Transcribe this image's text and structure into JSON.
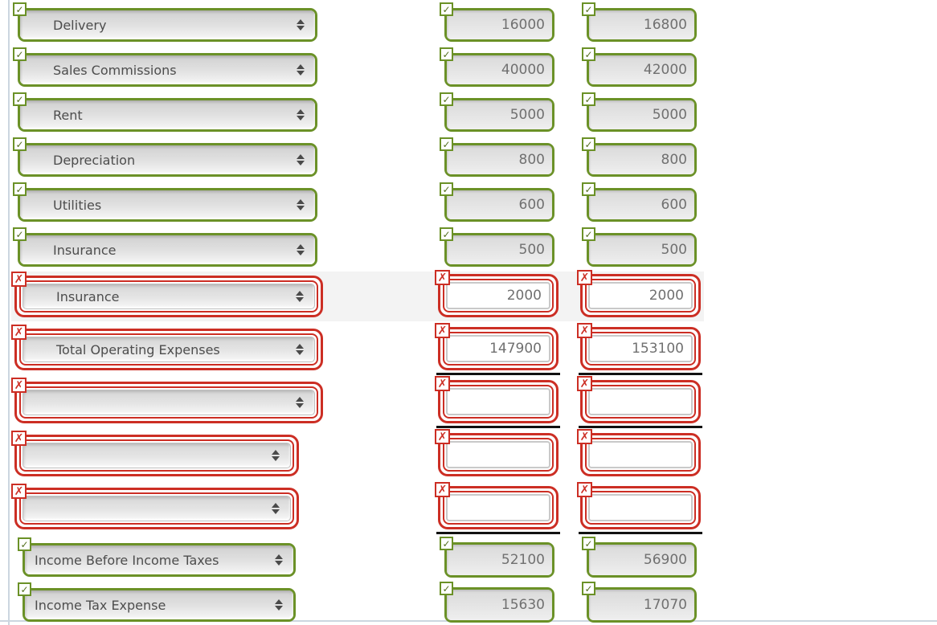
{
  "page": {
    "background": "#ffffff",
    "panel_border_color": "#ccd6e0"
  },
  "colors": {
    "correct_green": "#6b9127",
    "incorrect_red": "#cc2e24",
    "stripe_background": "#f3f3f3",
    "total_underline": "#111111",
    "label_text": "#4d4d4d",
    "amount_text": "#707070"
  },
  "icons": {
    "correct_badge": "✓",
    "incorrect_badge": "✗",
    "select_arrow": "up-down-arrows"
  },
  "rows": [
    {
      "state": "correct",
      "label": "Delivery",
      "amounts": [
        "16000",
        "16800"
      ],
      "width": "standard",
      "striped": false,
      "underline_below": false
    },
    {
      "state": "correct",
      "label": "Sales Commissions",
      "amounts": [
        "40000",
        "42000"
      ],
      "width": "standard",
      "striped": false,
      "underline_below": false
    },
    {
      "state": "correct",
      "label": "Rent",
      "amounts": [
        "5000",
        "5000"
      ],
      "width": "standard",
      "striped": false,
      "underline_below": false
    },
    {
      "state": "correct",
      "label": "Depreciation",
      "amounts": [
        "800",
        "800"
      ],
      "width": "standard",
      "striped": false,
      "underline_below": false
    },
    {
      "state": "correct",
      "label": "Utilities",
      "amounts": [
        "600",
        "600"
      ],
      "width": "standard",
      "striped": false,
      "underline_below": false
    },
    {
      "state": "correct",
      "label": "Insurance",
      "amounts": [
        "500",
        "500"
      ],
      "width": "standard",
      "striped": false,
      "underline_below": false
    },
    {
      "state": "incorrect",
      "label": "Insurance",
      "amounts": [
        "2000",
        "2000"
      ],
      "width": "wide",
      "striped": true,
      "underline_below": false
    },
    {
      "state": "incorrect",
      "label": "Total Operating Expenses",
      "amounts": [
        "147900",
        "153100"
      ],
      "width": "wide",
      "striped": false,
      "underline_below": true
    },
    {
      "state": "incorrect",
      "label": "",
      "amounts": [
        "",
        ""
      ],
      "width": "wide",
      "striped": false,
      "underline_below": true
    },
    {
      "state": "incorrect",
      "label": "",
      "amounts": [
        "",
        ""
      ],
      "width": "narrow",
      "striped": false,
      "underline_below": false
    },
    {
      "state": "incorrect",
      "label": "",
      "amounts": [
        "",
        ""
      ],
      "width": "narrow",
      "striped": false,
      "underline_below": true
    },
    {
      "state": "correct",
      "label": "Income Before Income Taxes",
      "amounts": [
        "52100",
        "56900"
      ],
      "width": "bottom",
      "striped": false,
      "underline_below": false
    },
    {
      "state": "correct",
      "label": "Income Tax Expense",
      "amounts": [
        "15630",
        "17070"
      ],
      "width": "bottom",
      "striped": false,
      "underline_below": false
    }
  ]
}
